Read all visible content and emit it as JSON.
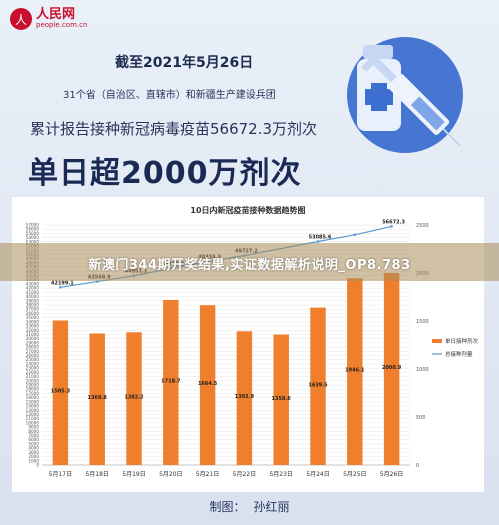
{
  "logo": {
    "mark": "人",
    "name": "人民网",
    "url": "people.com.cn"
  },
  "header": {
    "date_line": "截至2021年5月26日",
    "scope_line": "31个省（自治区、直辖市）和新疆生产建设兵团",
    "cumulative_line": "累计报告接种新冠病毒疫苗56672.3万剂次",
    "headline": "单日超2000万剂次"
  },
  "overlay": {
    "text": "新澳门344期开奖结果,实证数据解析说明_OP8.783"
  },
  "credit": {
    "label": "制图：",
    "author": "孙红丽"
  },
  "colors": {
    "bar": "#f07f2d",
    "line": "#5b9bd5",
    "headline": "#1a2a55",
    "background": "#dfe6f3"
  },
  "chart_data": {
    "type": "bar",
    "title": "10日内新冠疫苗接种数据趋势图",
    "categories": [
      "5月17日",
      "5月18日",
      "5月19日",
      "5月20日",
      "5月21日",
      "5月22日",
      "5月23日",
      "5月24日",
      "5月25日",
      "5月26日"
    ],
    "series": [
      {
        "name": "单日接种剂次",
        "type": "bar",
        "axis": "right",
        "values": [
          1505.3,
          1369.8,
          1382.2,
          1718.7,
          1664.5,
          1392.9,
          1358.6,
          1639.5,
          1946.1,
          2000.9
        ],
        "labels": [
          "1505.3",
          "1369.8",
          "1382.2",
          "1718.7",
          "1664.5",
          "1392.9",
          "1358.6",
          "1639.5",
          "1946.1",
          "2000.9"
        ]
      },
      {
        "name": "总接种剂量",
        "type": "line",
        "axis": "left",
        "values": [
          42199.1,
          43568.9,
          44951.1,
          46669.8,
          48334.3,
          49727.2,
          null,
          53085.6,
          54671.4,
          56672.3
        ],
        "labels": [
          "42199.1",
          "43568.9",
          "44951.1",
          "46669.8",
          "48334.3",
          "49727.2",
          "",
          "53085.6",
          "",
          "56672.3"
        ]
      }
    ],
    "left_axis": {
      "ylim": [
        0,
        57000
      ],
      "ticks": [
        0,
        1000,
        2000,
        3000,
        4000,
        5000,
        6000,
        7000,
        8000,
        9000,
        10000,
        11000,
        12000,
        13000,
        14000,
        15000,
        16000,
        17000,
        18000,
        19000,
        20000,
        21000,
        22000,
        23000,
        24000,
        25000,
        26000,
        27000,
        28000,
        29000,
        30000,
        31000,
        32000,
        33000,
        34000,
        35000,
        36000,
        37000,
        38000,
        39000,
        40000,
        41000,
        42000,
        43000,
        44000,
        45000,
        46000,
        47000,
        48000,
        49000,
        50000,
        51000,
        52000,
        53000,
        54000,
        55000,
        56000,
        57000
      ]
    },
    "right_axis": {
      "ylim": [
        0,
        2500
      ],
      "ticks": [
        0,
        500,
        1000,
        1500,
        2000,
        2500
      ]
    },
    "legend": {
      "placement": "right"
    },
    "grid": true
  }
}
